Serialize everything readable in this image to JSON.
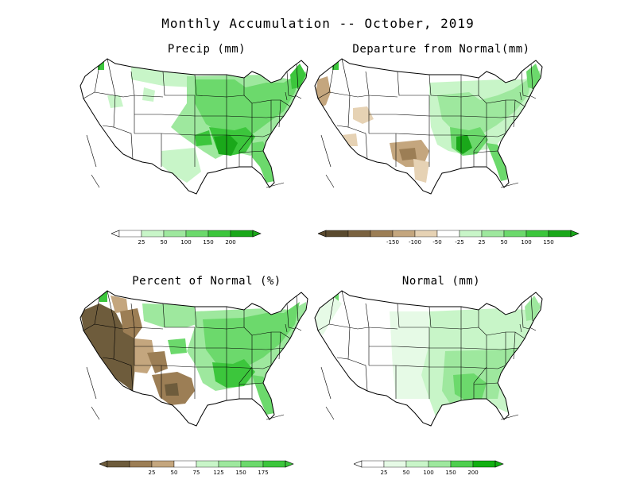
{
  "title": "Monthly Accumulation -- October, 2019",
  "panels": [
    {
      "id": "precip",
      "title": "Precip (mm)",
      "legend": {
        "colors": [
          "#ffffff",
          "#c8f5c8",
          "#9ee89e",
          "#6cd96c",
          "#3cc63c",
          "#1aa81a"
        ],
        "labels": [
          "25",
          "50",
          "100",
          "150",
          "200"
        ]
      }
    },
    {
      "id": "departure",
      "title": "Departure from Normal(mm)",
      "legend": {
        "colors": [
          "#5a4a2e",
          "#7a6240",
          "#9c7e55",
          "#c4a67e",
          "#e6d2b4",
          "#ffffff",
          "#c8f5c8",
          "#9ee89e",
          "#6cd96c",
          "#3cc63c",
          "#1aa81a"
        ],
        "labels": [
          "-150",
          "-100",
          "-50",
          "-25",
          "25",
          "50",
          "100",
          "150"
        ]
      }
    },
    {
      "id": "percent",
      "title": "Percent of Normal (%)",
      "legend": {
        "colors": [
          "#6e5c3c",
          "#9c7e55",
          "#c4a67e",
          "#ffffff",
          "#c8f5c8",
          "#9ee89e",
          "#6cd96c",
          "#3cc63c"
        ],
        "labels": [
          "25",
          "50",
          "75",
          "125",
          "150",
          "175"
        ]
      }
    },
    {
      "id": "normal",
      "title": "Normal (mm)",
      "legend": {
        "colors": [
          "#ffffff",
          "#e6fae6",
          "#c8f5c8",
          "#9ee89e",
          "#4fcf4f",
          "#12b012"
        ],
        "labels": [
          "25",
          "50",
          "100",
          "150",
          "200"
        ]
      }
    }
  ]
}
